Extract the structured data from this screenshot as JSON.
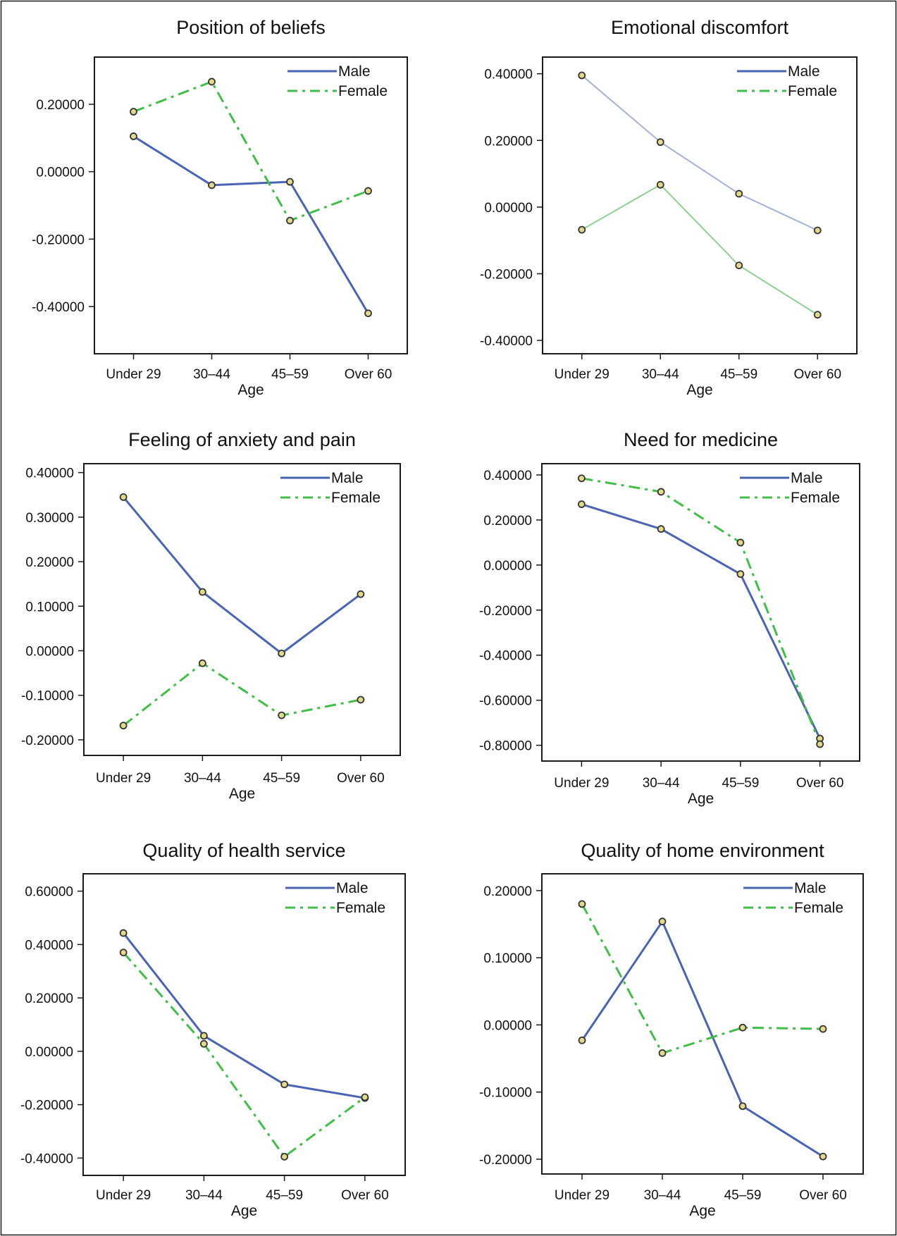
{
  "colors": {
    "male": "#4a63b3",
    "female": "#3fbf47",
    "male_light": "#a5b2d8",
    "female_light": "#8fd091",
    "marker_fill": "#e3d98a",
    "marker_stroke": "#333333",
    "frame": "#1a1a1a"
  },
  "chart_data": [
    {
      "type": "line",
      "title": "Position of beliefs",
      "xlabel": "Age",
      "ylabel": "",
      "categories": [
        "Under 29",
        "30–44",
        "45–59",
        "Over 60"
      ],
      "yticks": [
        "0.20000",
        "0.00000",
        "-0.20000",
        "-0.40000"
      ],
      "ylim": [
        -0.54,
        0.34
      ],
      "legend_position": "top-right",
      "series": [
        {
          "name": "Male",
          "style": "solid",
          "values": [
            0.105,
            -0.04,
            -0.03,
            -0.42
          ]
        },
        {
          "name": "Female",
          "style": "dashdot",
          "values": [
            0.178,
            0.267,
            -0.145,
            -0.057
          ]
        }
      ]
    },
    {
      "type": "line",
      "title": "Emotional discomfort",
      "xlabel": "Age",
      "ylabel": "",
      "categories": [
        "Under 29",
        "30–44",
        "45–59",
        "Over 60"
      ],
      "yticks": [
        "0.40000",
        "0.20000",
        "0.00000",
        "-0.20000",
        "-0.40000"
      ],
      "ylim": [
        -0.44,
        0.45
      ],
      "legend_position": "top-right",
      "series": [
        {
          "name": "Male",
          "style": "solid-light",
          "values": [
            0.395,
            0.195,
            0.04,
            -0.07
          ]
        },
        {
          "name": "Female",
          "style": "solid-light",
          "values": [
            -0.068,
            0.067,
            -0.175,
            -0.323
          ]
        }
      ]
    },
    {
      "type": "line",
      "title": "Feeling of anxiety and pain",
      "xlabel": "Age",
      "ylabel": "",
      "categories": [
        "Under 29",
        "30–44",
        "45–59",
        "Over 60"
      ],
      "yticks": [
        "0.40000",
        "0.30000",
        "0.20000",
        "0.10000",
        "0.00000",
        "-0.10000",
        "-0.20000"
      ],
      "ylim": [
        -0.235,
        0.42
      ],
      "legend_position": "top-right",
      "series": [
        {
          "name": "Male",
          "style": "solid",
          "values": [
            0.345,
            0.132,
            -0.006,
            0.127
          ]
        },
        {
          "name": "Female",
          "style": "dashdot",
          "values": [
            -0.168,
            -0.028,
            -0.145,
            -0.11
          ]
        }
      ]
    },
    {
      "type": "line",
      "title": "Need for medicine",
      "xlabel": "Age",
      "ylabel": "",
      "categories": [
        "Under 29",
        "30–44",
        "45–59",
        "Over 60"
      ],
      "yticks": [
        "0.40000",
        "0.20000",
        "0.00000",
        "-0.20000",
        "-0.40000",
        "-0.60000",
        "-0.80000"
      ],
      "ylim": [
        -0.87,
        0.45
      ],
      "legend_position": "top-right",
      "series": [
        {
          "name": "Male",
          "style": "solid",
          "values": [
            0.27,
            0.16,
            -0.04,
            -0.77
          ]
        },
        {
          "name": "Female",
          "style": "dashdot",
          "values": [
            0.385,
            0.325,
            0.1,
            -0.795
          ]
        }
      ]
    },
    {
      "type": "line",
      "title": "Quality of health service",
      "xlabel": "Age",
      "ylabel": "",
      "categories": [
        "Under 29",
        "30–44",
        "45–59",
        "Over 60"
      ],
      "yticks": [
        "0.60000",
        "0.40000",
        "0.20000",
        "0.00000",
        "-0.20000",
        "-0.40000"
      ],
      "ylim": [
        -0.465,
        0.665
      ],
      "legend_position": "top-right",
      "series": [
        {
          "name": "Male",
          "style": "solid",
          "values": [
            0.443,
            0.058,
            -0.124,
            -0.175
          ]
        },
        {
          "name": "Female",
          "style": "dashdot",
          "values": [
            0.37,
            0.028,
            -0.395,
            -0.172
          ]
        }
      ]
    },
    {
      "type": "line",
      "title": "Quality of home environment",
      "xlabel": "Age",
      "ylabel": "",
      "categories": [
        "Under 29",
        "30–44",
        "45–59",
        "Over 60"
      ],
      "yticks": [
        "0.20000",
        "0.10000",
        "0.00000",
        "-0.10000",
        "-0.20000"
      ],
      "ylim": [
        -0.222,
        0.225
      ],
      "legend_position": "top-right",
      "series": [
        {
          "name": "Male",
          "style": "solid",
          "values": [
            -0.023,
            0.154,
            -0.121,
            -0.196
          ]
        },
        {
          "name": "Female",
          "style": "dashdot",
          "values": [
            0.18,
            -0.042,
            -0.004,
            -0.006
          ]
        }
      ]
    }
  ]
}
